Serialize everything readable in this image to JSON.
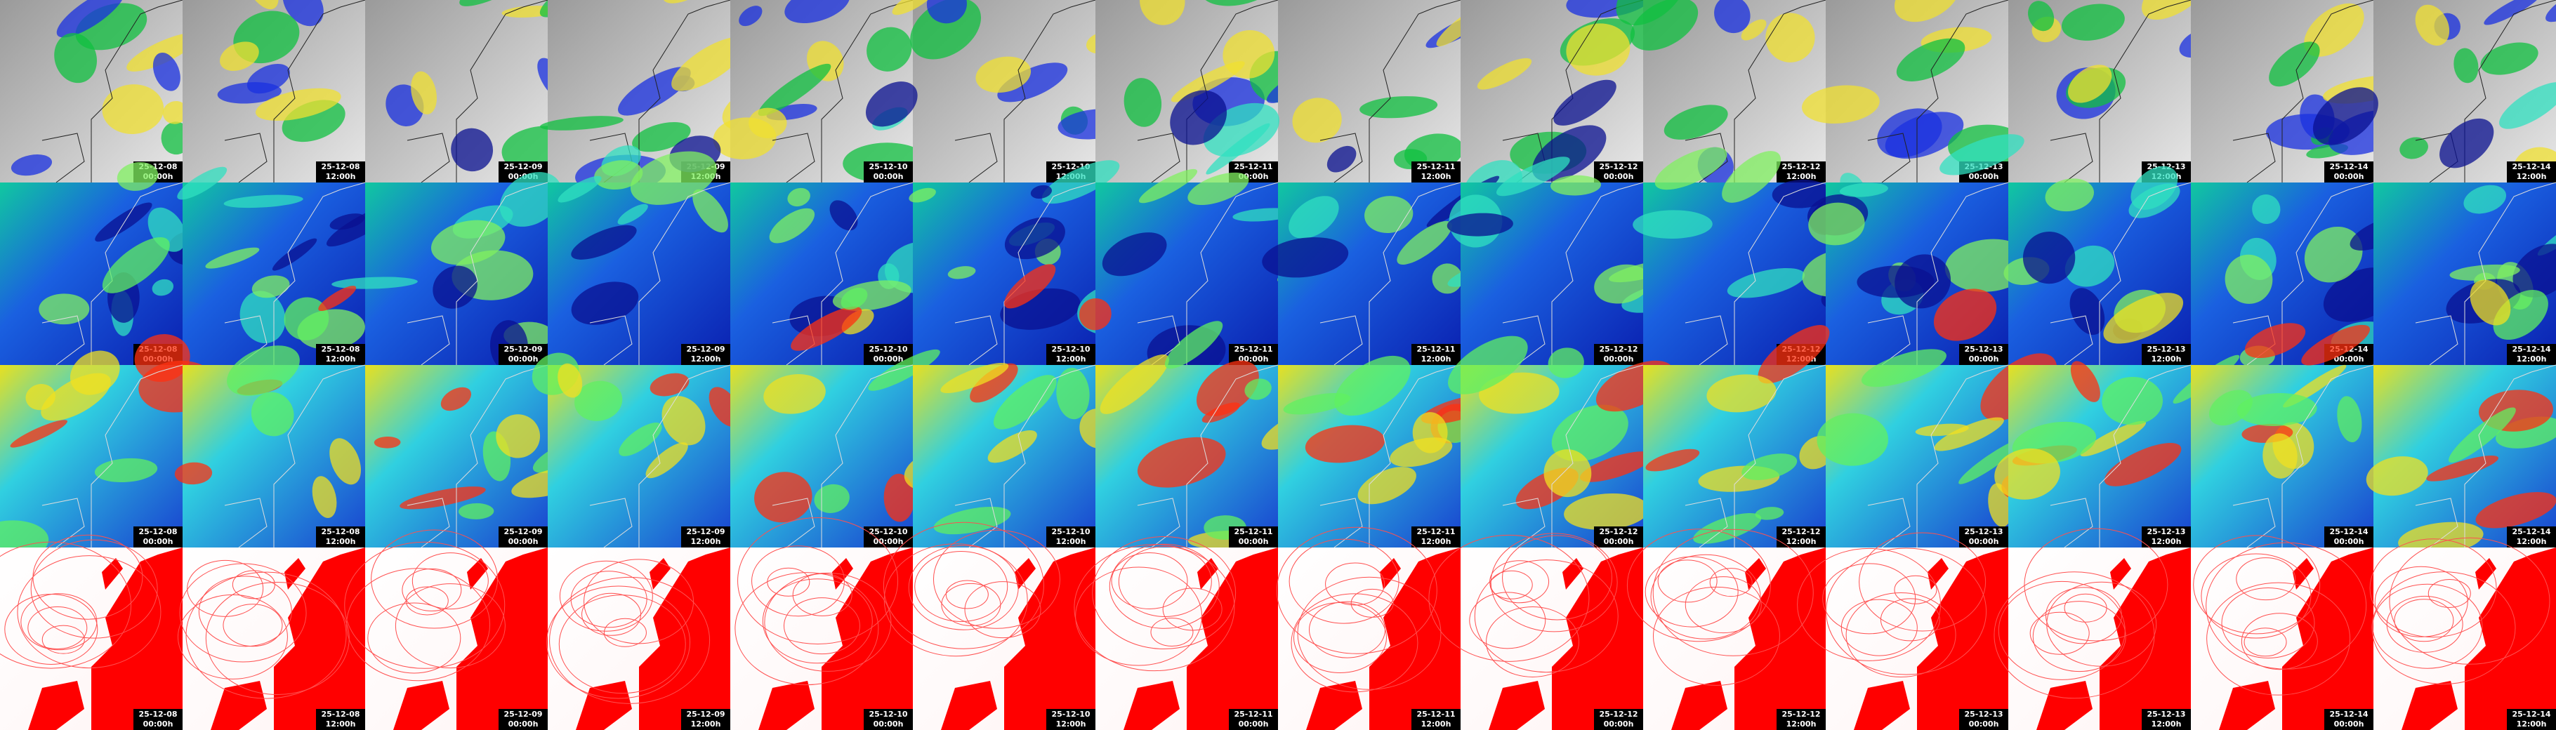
{
  "rows": [
    {
      "tiles": [
        {
          "date": "25-12-08",
          "time": "00:00h"
        },
        {
          "date": "25-12-08",
          "time": "12:00h"
        },
        {
          "date": "25-12-09",
          "time": "00:00h"
        },
        {
          "date": "25-12-09",
          "time": "12:00h"
        },
        {
          "date": "25-12-10",
          "time": "00:00h"
        },
        {
          "date": "25-12-10",
          "time": "12:00h"
        },
        {
          "date": "25-12-11",
          "time": "00:00h"
        },
        {
          "date": "25-12-11",
          "time": "12:00h"
        },
        {
          "date": "25-12-12",
          "time": "00:00h"
        },
        {
          "date": "25-12-12",
          "time": "12:00h"
        },
        {
          "date": "25-12-13",
          "time": "00:00h"
        },
        {
          "date": "25-12-13",
          "time": "12:00h"
        },
        {
          "date": "25-12-14",
          "time": "00:00h"
        },
        {
          "date": "25-12-14",
          "time": "12:00h"
        }
      ]
    },
    {
      "tiles": [
        {
          "date": "25-12-08",
          "time": "00:00h"
        },
        {
          "date": "25-12-08",
          "time": "12:00h"
        },
        {
          "date": "25-12-09",
          "time": "00:00h"
        },
        {
          "date": "25-12-09",
          "time": "12:00h"
        },
        {
          "date": "25-12-10",
          "time": "00:00h"
        },
        {
          "date": "25-12-10",
          "time": "12:00h"
        },
        {
          "date": "25-12-11",
          "time": "00:00h"
        },
        {
          "date": "25-12-11",
          "time": "12:00h"
        },
        {
          "date": "25-12-12",
          "time": "00:00h"
        },
        {
          "date": "25-12-12",
          "time": "12:00h"
        },
        {
          "date": "25-12-13",
          "time": "00:00h"
        },
        {
          "date": "25-12-13",
          "time": "12:00h"
        },
        {
          "date": "25-12-14",
          "time": "00:00h"
        },
        {
          "date": "25-12-14",
          "time": "12:00h"
        }
      ]
    },
    {
      "tiles": [
        {
          "date": "25-12-08",
          "time": "00:00h"
        },
        {
          "date": "25-12-08",
          "time": "12:00h"
        },
        {
          "date": "25-12-09",
          "time": "00:00h"
        },
        {
          "date": "25-12-09",
          "time": "12:00h"
        },
        {
          "date": "25-12-10",
          "time": "00:00h"
        },
        {
          "date": "25-12-10",
          "time": "12:00h"
        },
        {
          "date": "25-12-11",
          "time": "00:00h"
        },
        {
          "date": "25-12-11",
          "time": "12:00h"
        },
        {
          "date": "25-12-12",
          "time": "00:00h"
        },
        {
          "date": "25-12-12",
          "time": "12:00h"
        },
        {
          "date": "25-12-13",
          "time": "00:00h"
        },
        {
          "date": "25-12-13",
          "time": "12:00h"
        },
        {
          "date": "25-12-14",
          "time": "00:00h"
        },
        {
          "date": "25-12-14",
          "time": "12:00h"
        }
      ]
    },
    {
      "tiles": [
        {
          "date": "25-12-08",
          "time": "00:00h"
        },
        {
          "date": "25-12-08",
          "time": "12:00h"
        },
        {
          "date": "25-12-09",
          "time": "00:00h"
        },
        {
          "date": "25-12-09",
          "time": "12:00h"
        },
        {
          "date": "25-12-10",
          "time": "00:00h"
        },
        {
          "date": "25-12-10",
          "time": "12:00h"
        },
        {
          "date": "25-12-11",
          "time": "00:00h"
        },
        {
          "date": "25-12-11",
          "time": "12:00h"
        },
        {
          "date": "25-12-12",
          "time": "00:00h"
        },
        {
          "date": "25-12-12",
          "time": "12:00h"
        },
        {
          "date": "25-12-13",
          "time": "00:00h"
        },
        {
          "date": "25-12-13",
          "time": "12:00h"
        },
        {
          "date": "25-12-14",
          "time": "00:00h"
        },
        {
          "date": "25-12-14",
          "time": "12:00h"
        }
      ]
    }
  ]
}
